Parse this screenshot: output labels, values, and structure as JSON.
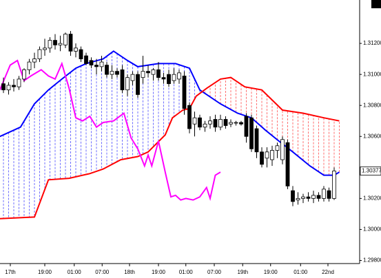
{
  "chart_data": {
    "type": "candlestick",
    "xlim": [
      -0.667,
      68.933
    ],
    "ylim": [
      1.2978,
      1.3148
    ],
    "xticks": [
      {
        "value": 1.33,
        "label": "17th"
      },
      {
        "value": 8,
        "label": "19:00"
      },
      {
        "value": 13.7,
        "label": "01:00"
      },
      {
        "value": 19.1,
        "label": "07:00"
      },
      {
        "value": 24.4,
        "label": "18th"
      },
      {
        "value": 30,
        "label": "19:00"
      },
      {
        "value": 35.3,
        "label": "01:00"
      },
      {
        "value": 40.8,
        "label": "07:00"
      },
      {
        "value": 46.3,
        "label": "19th"
      },
      {
        "value": 51.7,
        "label": "19:00"
      },
      {
        "value": 57.5,
        "label": "01:00"
      },
      {
        "value": 62.8,
        "label": "22nd"
      }
    ],
    "yticks": [
      {
        "value": 1.312,
        "label": "1.31200"
      },
      {
        "value": 1.31,
        "label": "1.31000"
      },
      {
        "value": 1.308,
        "label": "1.30800"
      },
      {
        "value": 1.306,
        "label": "1.30600"
      },
      {
        "value": 1.302,
        "label": "1.30200"
      },
      {
        "value": 1.3,
        "label": "1.30000"
      },
      {
        "value": 1.298,
        "label": "1.29800"
      }
    ],
    "up_color": "#ffffff",
    "down_color": "#000000",
    "open": [
      1.3094,
      1.309,
      1.3093,
      1.3092,
      1.3097,
      1.3103,
      1.3108,
      1.311,
      1.3116,
      1.3117,
      1.3122,
      1.3119,
      1.3119,
      1.3126,
      1.3115,
      1.3116,
      1.3112,
      1.3109,
      1.3106,
      1.3105,
      1.3106,
      1.31,
      1.3102,
      1.3103,
      1.309,
      1.3096,
      1.31,
      1.3098,
      1.3102,
      1.31,
      1.3103,
      1.3098,
      1.31,
      1.3096,
      1.3097,
      1.3099,
      1.308,
      1.3068,
      1.3072,
      1.3066,
      1.3068,
      1.3071,
      1.3066,
      1.3071,
      1.3068,
      1.3069,
      1.3069,
      1.3073,
      1.3072,
      1.3065,
      1.305,
      1.3046,
      1.3045,
      1.3051,
      1.3045,
      1.3056,
      1.3025,
      1.3019,
      1.302,
      1.3021,
      1.302,
      1.3022,
      1.302,
      1.3025,
      1.302
    ],
    "high": [
      1.3098,
      1.3095,
      1.3097,
      1.3099,
      1.3104,
      1.311,
      1.3114,
      1.3118,
      1.3123,
      1.3124,
      1.3126,
      1.3125,
      1.3127,
      1.3128,
      1.312,
      1.3118,
      1.3114,
      1.3111,
      1.311,
      1.3112,
      1.3108,
      1.3106,
      1.3104,
      1.3106,
      1.31,
      1.3102,
      1.3102,
      1.3112,
      1.3106,
      1.3104,
      1.3108,
      1.3101,
      1.3103,
      1.3104,
      1.3103,
      1.3102,
      1.3082,
      1.3076,
      1.3074,
      1.307,
      1.3073,
      1.3074,
      1.3074,
      1.3073,
      1.3071,
      1.307,
      1.307,
      1.3075,
      1.3074,
      1.3067,
      1.3053,
      1.3053,
      1.3054,
      1.3056,
      1.306,
      1.3058,
      1.3028,
      1.3024,
      1.3023,
      1.3024,
      1.3025,
      1.3024,
      1.3028,
      1.3027,
      1.304
    ],
    "low": [
      1.3088,
      1.3087,
      1.3089,
      1.309,
      1.3095,
      1.31,
      1.3104,
      1.3108,
      1.3112,
      1.3114,
      1.3116,
      1.3115,
      1.3117,
      1.3112,
      1.3111,
      1.3108,
      1.3106,
      1.3104,
      1.31,
      1.3102,
      1.3098,
      1.3097,
      1.3098,
      1.3088,
      1.3086,
      1.3093,
      1.3085,
      1.3094,
      1.3098,
      1.3096,
      1.3096,
      1.3094,
      1.3092,
      1.3094,
      1.3094,
      1.3074,
      1.3062,
      1.306,
      1.3064,
      1.3063,
      1.3065,
      1.3063,
      1.3064,
      1.3065,
      1.3066,
      1.3067,
      1.3067,
      1.3056,
      1.305,
      1.3046,
      1.304,
      1.304,
      1.3041,
      1.3046,
      1.3042,
      1.3026,
      1.3015,
      1.3016,
      1.3017,
      1.3018,
      1.3017,
      1.3018,
      1.3018,
      1.3018,
      1.3019
    ],
    "close": [
      1.309,
      1.3093,
      1.3092,
      1.3097,
      1.3103,
      1.3108,
      1.311,
      1.3116,
      1.3117,
      1.3122,
      1.3119,
      1.312,
      1.3126,
      1.3115,
      1.3117,
      1.311,
      1.3107,
      1.3106,
      1.3105,
      1.3108,
      1.31,
      1.3102,
      1.31,
      1.309,
      1.3098,
      1.31,
      1.3087,
      1.3102,
      1.3101,
      1.3103,
      1.3098,
      1.3097,
      1.3094,
      1.31,
      1.3101,
      1.3078,
      1.3065,
      1.3072,
      1.3066,
      1.3068,
      1.307,
      1.3066,
      1.3071,
      1.3067,
      1.3069,
      1.3069,
      1.3068,
      1.306,
      1.3052,
      1.305,
      1.3042,
      1.305,
      1.3051,
      1.3054,
      1.3058,
      1.3028,
      1.3018,
      1.302,
      1.3021,
      1.302,
      1.3022,
      1.302,
      1.3026,
      1.302,
      1.30377
    ],
    "series": [
      {
        "color": "#0000ff",
        "x": [
          -0.7,
          3.3,
          6,
          8.7,
          11.3,
          14,
          16,
          19.3,
          21.3,
          24,
          26,
          30,
          33.3,
          36,
          38,
          42,
          45.3,
          48,
          50.7,
          53.3,
          56,
          59.3,
          62,
          64,
          65
        ],
        "values": [
          1.306,
          1.3066,
          1.3081,
          1.309,
          1.3097,
          1.3104,
          1.3107,
          1.311,
          1.3115,
          1.3109,
          1.3105,
          1.3107,
          1.3107,
          1.3104,
          1.309,
          1.3081,
          1.3075,
          1.3072,
          1.3064,
          1.3057,
          1.305,
          1.3041,
          1.3035,
          1.3035,
          1.3037
        ]
      },
      {
        "color": "#ff0000",
        "x": [
          -0.7,
          6,
          8.7,
          12.7,
          16.7,
          19.3,
          22.7,
          26,
          28,
          31.3,
          32.7,
          34.7,
          36,
          37.3,
          39.3,
          42,
          44,
          46.7,
          50,
          54,
          58,
          62,
          65
        ],
        "values": [
          1.3007,
          1.3008,
          1.3032,
          1.3033,
          1.3036,
          1.3039,
          1.3045,
          1.3047,
          1.305,
          1.3061,
          1.3072,
          1.3077,
          1.3078,
          1.3086,
          1.3091,
          1.3097,
          1.3098,
          1.3092,
          1.309,
          1.3077,
          1.3075,
          1.3072,
          1.307
        ]
      },
      {
        "color": "#ff00ff",
        "x": [
          -0.7,
          1.3,
          2.7,
          4,
          5.3,
          7.3,
          8.7,
          10,
          11.3,
          12.7,
          14,
          15.3,
          16.7,
          18,
          19.3,
          21.3,
          23.3,
          24.7,
          26,
          27.3,
          28,
          28.7,
          30,
          31.3,
          32.4,
          33.3,
          34.3,
          35.3,
          36.7,
          38,
          39.3,
          40,
          41,
          42
        ],
        "values": [
          1.309,
          1.3106,
          1.3109,
          1.3096,
          1.3099,
          1.3103,
          1.3099,
          1.3097,
          1.3107,
          1.3091,
          1.3072,
          1.307,
          1.3073,
          1.3066,
          1.3069,
          1.307,
          1.3075,
          1.3059,
          1.3052,
          1.3041,
          1.3048,
          1.3041,
          1.3057,
          1.3037,
          1.3021,
          1.3022,
          1.3019,
          1.302,
          1.3019,
          1.3021,
          1.3027,
          1.302,
          1.3035,
          1.3037
        ]
      }
    ]
  }
}
